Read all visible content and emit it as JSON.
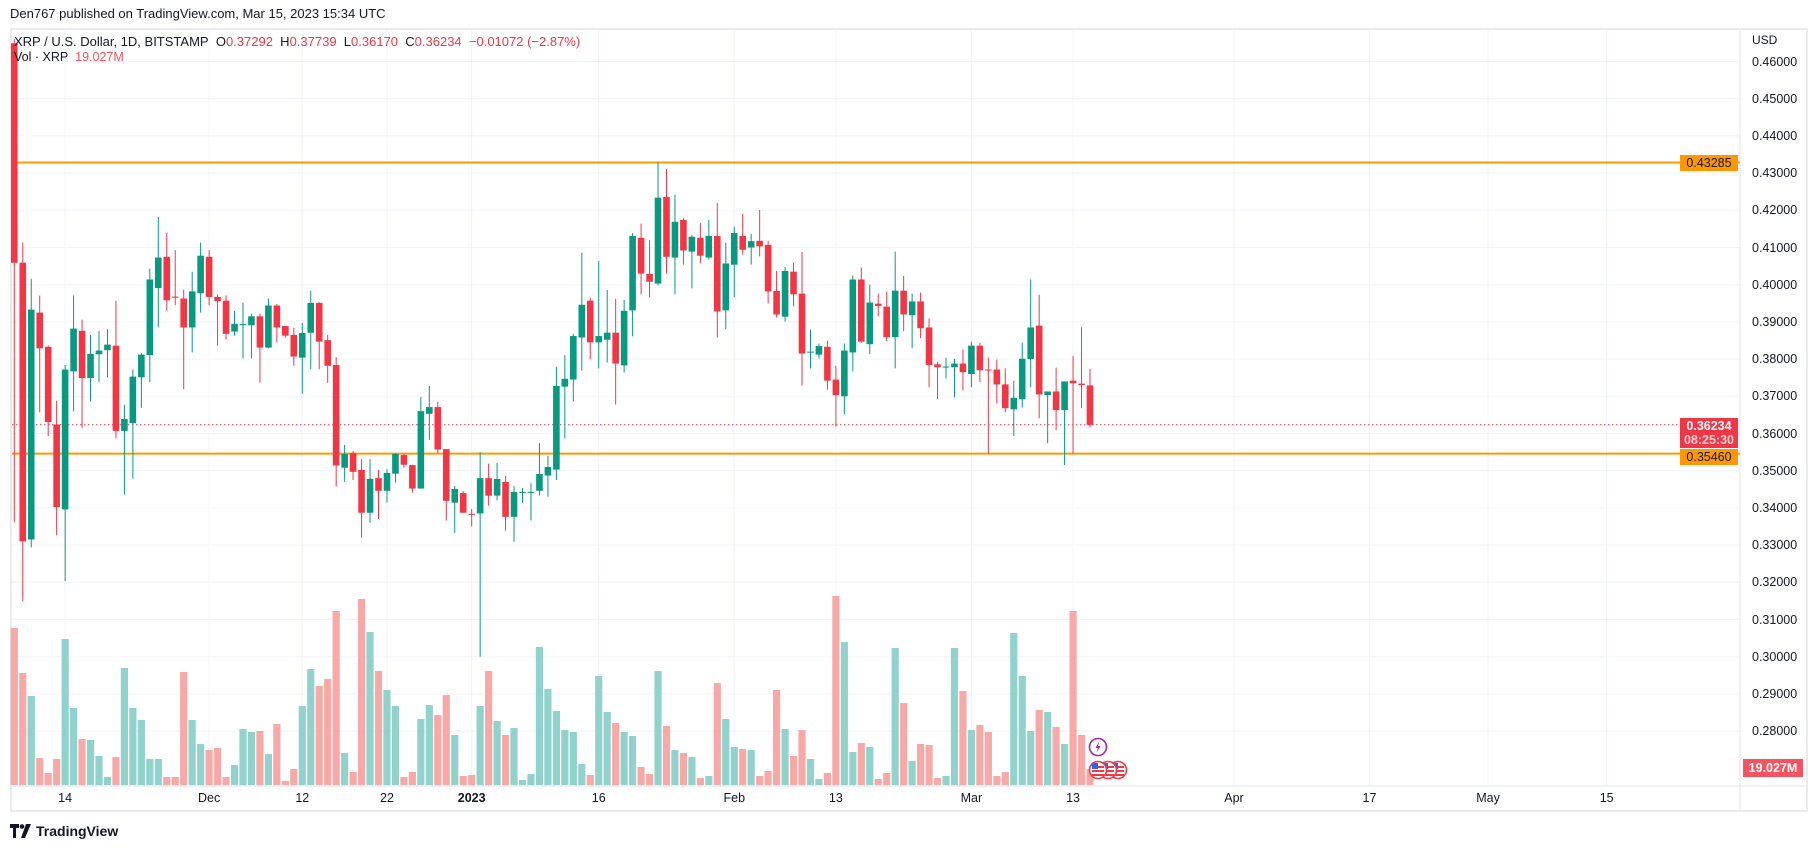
{
  "publisher_line": "Den767 published on TradingView.com, Mar 15, 2023 15:34 UTC",
  "legend": {
    "symbol": "XRP / U.S. Dollar, 1D, BITSTAMP",
    "o_label": "O",
    "o": "0.37292",
    "h_label": "H",
    "h": "0.37739",
    "l_label": "L",
    "l": "0.36170",
    "c_label": "C",
    "c": "0.36234",
    "change": "−0.01072 (−2.87%)",
    "vol_label": "Vol · XRP",
    "vol": "19.027M"
  },
  "price_axis": {
    "currency": "USD",
    "ticks": [
      "0.46000",
      "0.45000",
      "0.44000",
      "0.43000",
      "0.42000",
      "0.41000",
      "0.40000",
      "0.39000",
      "0.38000",
      "0.37000",
      "0.36000",
      "0.35000",
      "0.34000",
      "0.33000",
      "0.32000",
      "0.31000",
      "0.30000",
      "0.29000",
      "0.28000"
    ],
    "resistance_label": "0.43285",
    "support_label": "0.35460",
    "last_price_label": "0.36234",
    "countdown": "08:25:30",
    "volume_label": "19.027M"
  },
  "footer": {
    "brand": "TradingView"
  },
  "colors": {
    "up": "#089981",
    "down": "#f23645",
    "vol_up": "#92d2cc",
    "vol_down": "#f7a9a7",
    "levels": "#ff9800",
    "event_icon": "#9c27b0"
  },
  "icons": [
    "lightning-event-icon",
    "us-flag-event-icon"
  ],
  "chart_data": {
    "type": "candlestick",
    "symbol": "XRP / U.S. Dollar, 1D, BITSTAMP",
    "ylim": [
      0.28,
      0.46
    ],
    "y_unit": "USD",
    "volume_unit": "M XRP",
    "grid": true,
    "horizontal_levels": [
      0.43285,
      0.3546
    ],
    "last_price": 0.36234,
    "x_ticks": [
      {
        "label": "14",
        "date": "2022-11-14"
      },
      {
        "label": "Dec",
        "date": "2022-12-01"
      },
      {
        "label": "12",
        "date": "2022-12-12"
      },
      {
        "label": "22",
        "date": "2022-12-22"
      },
      {
        "label": "2023",
        "date": "2023-01-01",
        "bold": true
      },
      {
        "label": "16",
        "date": "2023-01-16"
      },
      {
        "label": "Feb",
        "date": "2023-02-01"
      },
      {
        "label": "13",
        "date": "2023-02-13"
      },
      {
        "label": "Mar",
        "date": "2023-03-01"
      },
      {
        "label": "13",
        "date": "2023-03-13"
      },
      {
        "label": "Apr",
        "date": "2023-04-01"
      },
      {
        "label": "17",
        "date": "2023-04-17"
      },
      {
        "label": "May",
        "date": "2023-05-01"
      },
      {
        "label": "15",
        "date": "2023-05-15"
      }
    ],
    "fields": [
      "date",
      "open",
      "high",
      "low",
      "close",
      "volume"
    ],
    "candles": [
      [
        "2022-11-08",
        0.4649,
        0.466,
        0.3361,
        0.4059,
        188.4
      ],
      [
        "2022-11-09",
        0.4059,
        0.4113,
        0.3149,
        0.331,
        134.4
      ],
      [
        "2022-11-10",
        0.3315,
        0.4016,
        0.3294,
        0.3933,
        106.8
      ],
      [
        "2022-11-11",
        0.3925,
        0.3971,
        0.3657,
        0.3829,
        32.4
      ],
      [
        "2022-11-12",
        0.3833,
        0.3837,
        0.3593,
        0.3631,
        14.4
      ],
      [
        "2022-11-13",
        0.3624,
        0.3688,
        0.3326,
        0.3402,
        31.2
      ],
      [
        "2022-11-14",
        0.3396,
        0.3784,
        0.3203,
        0.3772,
        175.2
      ],
      [
        "2022-11-15",
        0.3767,
        0.3971,
        0.3659,
        0.3882,
        92.4
      ],
      [
        "2022-11-16",
        0.3876,
        0.3906,
        0.3615,
        0.3749,
        55.2
      ],
      [
        "2022-11-17",
        0.3749,
        0.3865,
        0.3686,
        0.3814,
        54
      ],
      [
        "2022-11-18",
        0.3813,
        0.3876,
        0.3738,
        0.3823,
        34.8
      ],
      [
        "2022-11-19",
        0.3824,
        0.388,
        0.3751,
        0.3839,
        9.6
      ],
      [
        "2022-11-20",
        0.3836,
        0.3957,
        0.3587,
        0.3607,
        33.6
      ],
      [
        "2022-11-21",
        0.3607,
        0.3677,
        0.3436,
        0.3639,
        140.4
      ],
      [
        "2022-11-22",
        0.3628,
        0.3772,
        0.3479,
        0.3753,
        92.4
      ],
      [
        "2022-11-23",
        0.3751,
        0.3816,
        0.3669,
        0.3812,
        78
      ],
      [
        "2022-11-24",
        0.3811,
        0.4043,
        0.3738,
        0.4014,
        31.2
      ],
      [
        "2022-11-25",
        0.3991,
        0.4182,
        0.3885,
        0.4073,
        31.2
      ],
      [
        "2022-11-26",
        0.4075,
        0.4139,
        0.393,
        0.3958,
        9.6
      ],
      [
        "2022-11-27",
        0.3968,
        0.4093,
        0.3945,
        0.3965,
        9.6
      ],
      [
        "2022-11-28",
        0.3963,
        0.3987,
        0.3719,
        0.3885,
        135.6
      ],
      [
        "2022-11-29",
        0.3885,
        0.4035,
        0.3818,
        0.3982,
        78
      ],
      [
        "2022-11-30",
        0.3977,
        0.4113,
        0.3925,
        0.4078,
        49.2
      ],
      [
        "2022-12-01",
        0.4075,
        0.4093,
        0.3945,
        0.3967,
        42
      ],
      [
        "2022-12-02",
        0.3967,
        0.3974,
        0.3836,
        0.3956,
        44.4
      ],
      [
        "2022-12-03",
        0.3957,
        0.3971,
        0.3853,
        0.3868,
        9.6
      ],
      [
        "2022-12-04",
        0.3874,
        0.393,
        0.3863,
        0.3895,
        24
      ],
      [
        "2022-12-05",
        0.3891,
        0.3952,
        0.3802,
        0.3894,
        67.2
      ],
      [
        "2022-12-06",
        0.3891,
        0.3922,
        0.3802,
        0.3915,
        63.6
      ],
      [
        "2022-12-07",
        0.3915,
        0.3922,
        0.3737,
        0.3831,
        64.8
      ],
      [
        "2022-12-08",
        0.3831,
        0.3963,
        0.3829,
        0.3944,
        37.2
      ],
      [
        "2022-12-09",
        0.3944,
        0.3948,
        0.3845,
        0.3885,
        73.2
      ],
      [
        "2022-12-10",
        0.3889,
        0.3889,
        0.3858,
        0.3863,
        4.8
      ],
      [
        "2022-12-11",
        0.3865,
        0.3884,
        0.3782,
        0.3807,
        19.2
      ],
      [
        "2022-12-12",
        0.3804,
        0.3897,
        0.3707,
        0.387,
        94.8
      ],
      [
        "2022-12-13",
        0.3871,
        0.3983,
        0.3773,
        0.3951,
        139.2
      ],
      [
        "2022-12-14",
        0.3951,
        0.3953,
        0.3773,
        0.3847,
        118.8
      ],
      [
        "2022-12-15",
        0.3851,
        0.3865,
        0.3736,
        0.3782,
        127.2
      ],
      [
        "2022-12-16",
        0.3784,
        0.3805,
        0.3457,
        0.3514,
        208.8
      ],
      [
        "2022-12-17",
        0.3508,
        0.3569,
        0.347,
        0.3545,
        38.4
      ],
      [
        "2022-12-18",
        0.3547,
        0.3553,
        0.3475,
        0.3497,
        15.6
      ],
      [
        "2022-12-19",
        0.3502,
        0.3531,
        0.332,
        0.3387,
        223.2
      ],
      [
        "2022-12-20",
        0.3387,
        0.3531,
        0.336,
        0.3478,
        183.6
      ],
      [
        "2022-12-21",
        0.348,
        0.3502,
        0.337,
        0.3446,
        136.8
      ],
      [
        "2022-12-22",
        0.3446,
        0.3504,
        0.3414,
        0.3494,
        114
      ],
      [
        "2022-12-23",
        0.3492,
        0.3548,
        0.3468,
        0.3545,
        94.8
      ],
      [
        "2022-12-24",
        0.3542,
        0.3545,
        0.3508,
        0.3516,
        9.6
      ],
      [
        "2022-12-25",
        0.3515,
        0.3516,
        0.3441,
        0.3452,
        15.6
      ],
      [
        "2022-12-26",
        0.3452,
        0.3698,
        0.3452,
        0.366,
        79.2
      ],
      [
        "2022-12-27",
        0.3653,
        0.3728,
        0.3583,
        0.3671,
        96
      ],
      [
        "2022-12-28",
        0.3671,
        0.3685,
        0.3546,
        0.3557,
        84
      ],
      [
        "2022-12-29",
        0.3558,
        0.3558,
        0.3366,
        0.3419,
        108
      ],
      [
        "2022-12-30",
        0.3414,
        0.3459,
        0.3333,
        0.3451,
        60
      ],
      [
        "2022-12-31",
        0.344,
        0.3445,
        0.3387,
        0.3387,
        10.8
      ],
      [
        "2023-01-01",
        0.3384,
        0.3397,
        0.335,
        0.3382,
        12
      ],
      [
        "2023-01-02",
        0.3385,
        0.355,
        0.3,
        0.348,
        94.8
      ],
      [
        "2023-01-03",
        0.348,
        0.3519,
        0.3406,
        0.3433,
        136.8
      ],
      [
        "2023-01-04",
        0.3433,
        0.3521,
        0.342,
        0.3478,
        76.8
      ],
      [
        "2023-01-05",
        0.347,
        0.3486,
        0.3339,
        0.3376,
        60
      ],
      [
        "2023-01-06",
        0.3376,
        0.3459,
        0.3309,
        0.3443,
        68.4
      ],
      [
        "2023-01-07",
        0.3441,
        0.3453,
        0.3414,
        0.3443,
        6
      ],
      [
        "2023-01-08",
        0.3441,
        0.3467,
        0.3366,
        0.3443,
        13.2
      ],
      [
        "2023-01-09",
        0.3446,
        0.3574,
        0.3433,
        0.3491,
        165.6
      ],
      [
        "2023-01-10",
        0.3487,
        0.354,
        0.343,
        0.351,
        115.2
      ],
      [
        "2023-01-11",
        0.3503,
        0.3779,
        0.3475,
        0.3728,
        88.8
      ],
      [
        "2023-01-12",
        0.3726,
        0.3811,
        0.3587,
        0.3747,
        66
      ],
      [
        "2023-01-13",
        0.3745,
        0.3868,
        0.3686,
        0.3862,
        63.6
      ],
      [
        "2023-01-14",
        0.3858,
        0.4086,
        0.3769,
        0.3946,
        25.2
      ],
      [
        "2023-01-15",
        0.3957,
        0.3965,
        0.3799,
        0.3845,
        12
      ],
      [
        "2023-01-16",
        0.3845,
        0.4064,
        0.3775,
        0.3862,
        130.8
      ],
      [
        "2023-01-17",
        0.3852,
        0.3986,
        0.3791,
        0.3871,
        87.6
      ],
      [
        "2023-01-18",
        0.3871,
        0.3962,
        0.3678,
        0.3788,
        74.4
      ],
      [
        "2023-01-19",
        0.3783,
        0.3959,
        0.3764,
        0.393,
        63.6
      ],
      [
        "2023-01-20",
        0.3931,
        0.4139,
        0.3861,
        0.4131,
        58.8
      ],
      [
        "2023-01-21",
        0.4126,
        0.4164,
        0.3974,
        0.403,
        21.6
      ],
      [
        "2023-01-22",
        0.4029,
        0.412,
        0.3966,
        0.4008,
        13.2
      ],
      [
        "2023-01-23",
        0.4003,
        0.4329,
        0.3998,
        0.4234,
        136.8
      ],
      [
        "2023-01-24",
        0.4236,
        0.4311,
        0.403,
        0.4075,
        70.8
      ],
      [
        "2023-01-25",
        0.4073,
        0.4242,
        0.3974,
        0.4169,
        42
      ],
      [
        "2023-01-26",
        0.4174,
        0.418,
        0.4054,
        0.4092,
        38.4
      ],
      [
        "2023-01-27",
        0.4089,
        0.4134,
        0.399,
        0.4129,
        33.6
      ],
      [
        "2023-01-28",
        0.4126,
        0.4166,
        0.4057,
        0.4078,
        8.4
      ],
      [
        "2023-01-29",
        0.4073,
        0.4174,
        0.4068,
        0.4131,
        10.8
      ],
      [
        "2023-01-30",
        0.4131,
        0.422,
        0.3858,
        0.3928,
        122.4
      ],
      [
        "2023-01-31",
        0.3931,
        0.4113,
        0.388,
        0.4057,
        79.2
      ],
      [
        "2023-02-01",
        0.4054,
        0.4156,
        0.3966,
        0.4139,
        45.6
      ],
      [
        "2023-02-02",
        0.4131,
        0.419,
        0.4081,
        0.4094,
        43.2
      ],
      [
        "2023-02-03",
        0.41,
        0.4137,
        0.4054,
        0.4117,
        42
      ],
      [
        "2023-02-04",
        0.4118,
        0.4201,
        0.4076,
        0.4103,
        10.8
      ],
      [
        "2023-02-05",
        0.4107,
        0.4118,
        0.395,
        0.3982,
        16.8
      ],
      [
        "2023-02-06",
        0.3983,
        0.4037,
        0.3912,
        0.392,
        114
      ],
      [
        "2023-02-07",
        0.3914,
        0.4048,
        0.3901,
        0.4037,
        67.2
      ],
      [
        "2023-02-08",
        0.4035,
        0.4059,
        0.3942,
        0.3974,
        34.8
      ],
      [
        "2023-02-09",
        0.3976,
        0.4088,
        0.3729,
        0.3815,
        66
      ],
      [
        "2023-02-10",
        0.3818,
        0.3879,
        0.3775,
        0.382,
        31.2
      ],
      [
        "2023-02-11",
        0.3812,
        0.3842,
        0.3802,
        0.3835,
        7.2
      ],
      [
        "2023-02-12",
        0.3833,
        0.3849,
        0.3718,
        0.3742,
        14.4
      ],
      [
        "2023-02-13",
        0.3745,
        0.3782,
        0.3619,
        0.3703,
        226.8
      ],
      [
        "2023-02-14",
        0.37,
        0.3842,
        0.3652,
        0.3823,
        171.6
      ],
      [
        "2023-02-15",
        0.3818,
        0.4024,
        0.3767,
        0.4014,
        39.6
      ],
      [
        "2023-02-16",
        0.4014,
        0.4046,
        0.3843,
        0.3847,
        50.4
      ],
      [
        "2023-02-17",
        0.384,
        0.4,
        0.3813,
        0.3952,
        45.6
      ],
      [
        "2023-02-18",
        0.3949,
        0.3976,
        0.3915,
        0.3943,
        7.2
      ],
      [
        "2023-02-19",
        0.3941,
        0.3981,
        0.3848,
        0.3859,
        14.4
      ],
      [
        "2023-02-20",
        0.3859,
        0.4089,
        0.3775,
        0.3984,
        164.4
      ],
      [
        "2023-02-21",
        0.3984,
        0.4024,
        0.3875,
        0.392,
        98.4
      ],
      [
        "2023-02-22",
        0.3918,
        0.3976,
        0.3829,
        0.3955,
        28.8
      ],
      [
        "2023-02-23",
        0.3955,
        0.3979,
        0.3856,
        0.3883,
        49.2
      ],
      [
        "2023-02-24",
        0.3885,
        0.3909,
        0.3724,
        0.3784,
        48
      ],
      [
        "2023-02-25",
        0.3786,
        0.3793,
        0.3692,
        0.3778,
        8.4
      ],
      [
        "2023-02-26",
        0.3778,
        0.3804,
        0.3748,
        0.378,
        10.8
      ],
      [
        "2023-02-27",
        0.3778,
        0.3801,
        0.3697,
        0.3788,
        164.4
      ],
      [
        "2023-02-28",
        0.3788,
        0.3826,
        0.3716,
        0.3765,
        112.8
      ],
      [
        "2023-03-01",
        0.376,
        0.3847,
        0.3724,
        0.3836,
        66
      ],
      [
        "2023-03-02",
        0.3836,
        0.3844,
        0.3738,
        0.377,
        72
      ],
      [
        "2023-03-03",
        0.3772,
        0.3804,
        0.3546,
        0.377,
        63.6
      ],
      [
        "2023-03-04",
        0.3772,
        0.3799,
        0.3681,
        0.3732,
        10.8
      ],
      [
        "2023-03-05",
        0.3732,
        0.3775,
        0.3657,
        0.3668,
        15.6
      ],
      [
        "2023-03-06",
        0.3665,
        0.3742,
        0.3593,
        0.3696,
        182.4
      ],
      [
        "2023-03-07",
        0.3692,
        0.3844,
        0.367,
        0.3801,
        130.8
      ],
      [
        "2023-03-08",
        0.38,
        0.4014,
        0.3724,
        0.3885,
        64.8
      ],
      [
        "2023-03-09",
        0.389,
        0.3973,
        0.3641,
        0.3705,
        90
      ],
      [
        "2023-03-10",
        0.3703,
        0.3713,
        0.3574,
        0.3713,
        87.6
      ],
      [
        "2023-03-11",
        0.3713,
        0.3777,
        0.3609,
        0.3663,
        69.6
      ],
      [
        "2023-03-12",
        0.3663,
        0.374,
        0.3515,
        0.374,
        49.2
      ],
      [
        "2023-03-13",
        0.3742,
        0.3809,
        0.3546,
        0.3735,
        208.8
      ],
      [
        "2023-03-14",
        0.3734,
        0.3885,
        0.3668,
        0.373,
        60
      ],
      [
        "2023-03-15",
        0.37292,
        0.37739,
        0.3617,
        0.36234,
        19.027
      ]
    ]
  }
}
